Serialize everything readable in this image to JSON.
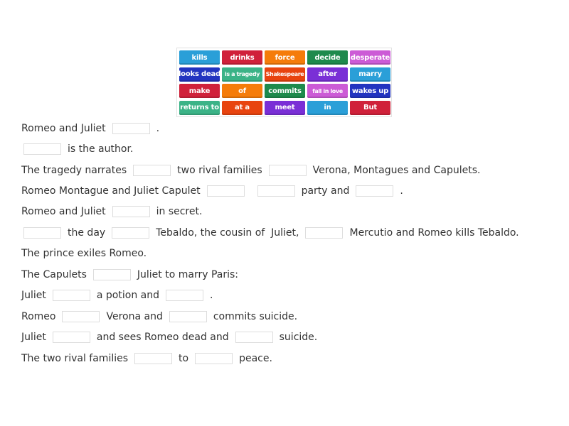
{
  "word_bank": [
    {
      "label": "kills",
      "color": "#2a9fd8"
    },
    {
      "label": "drinks",
      "color": "#d0213a"
    },
    {
      "label": "force",
      "color": "#f57c0a"
    },
    {
      "label": "decide",
      "color": "#1e8a4c"
    },
    {
      "label": "desperate",
      "color": "#cc5bd6"
    },
    {
      "label": "looks dead",
      "color": "#2234c0"
    },
    {
      "label": "is a tragedy",
      "color": "#3bb387"
    },
    {
      "label": "Shakespeare",
      "color": "#e8440f"
    },
    {
      "label": "after",
      "color": "#7a2fd6"
    },
    {
      "label": "marry",
      "color": "#2a9fd8"
    },
    {
      "label": "make",
      "color": "#d0213a"
    },
    {
      "label": "of",
      "color": "#f57c0a"
    },
    {
      "label": "commits",
      "color": "#1e8a4c"
    },
    {
      "label": "fall in love",
      "color": "#cc5bd6"
    },
    {
      "label": "wakes up",
      "color": "#2234c0"
    },
    {
      "label": "returns to",
      "color": "#3bb387"
    },
    {
      "label": "at a",
      "color": "#e8440f"
    },
    {
      "label": "meet",
      "color": "#7a2fd6"
    },
    {
      "label": "in",
      "color": "#2a9fd8"
    },
    {
      "label": "But",
      "color": "#d0213a"
    }
  ],
  "sentences": [
    [
      {
        "t": "Romeo and Juliet"
      },
      {
        "blank": true
      },
      {
        "t": "."
      }
    ],
    [
      {
        "blank": true
      },
      {
        "t": "is the author."
      }
    ],
    [
      {
        "t": "The tragedy narrates"
      },
      {
        "blank": true
      },
      {
        "t": "two rival families"
      },
      {
        "blank": true
      },
      {
        "t": "Verona, Montagues and Capulets."
      }
    ],
    [
      {
        "t": "Romeo Montague and Juliet Capulet"
      },
      {
        "blank": true
      },
      {
        "blank": true
      },
      {
        "t": "party and"
      },
      {
        "blank": true
      },
      {
        "t": "."
      }
    ],
    [
      {
        "t": "Romeo and Juliet"
      },
      {
        "blank": true
      },
      {
        "t": "in secret."
      }
    ],
    [
      {
        "blank": true
      },
      {
        "t": "the day"
      },
      {
        "blank": true
      },
      {
        "t": "Tebaldo, the cousin of  Juliet,"
      },
      {
        "blank": true
      },
      {
        "t": "Mercutio and Romeo kills Tebaldo."
      }
    ],
    [
      {
        "t": "The prince exiles Romeo."
      }
    ],
    [
      {
        "t": "The Capulets"
      },
      {
        "blank": true
      },
      {
        "t": "Juliet to marry Paris:"
      }
    ],
    [
      {
        "t": "Juliet"
      },
      {
        "blank": true
      },
      {
        "t": "a potion and"
      },
      {
        "blank": true
      },
      {
        "t": "."
      }
    ],
    [
      {
        "t": "Romeo"
      },
      {
        "blank": true
      },
      {
        "t": "Verona and"
      },
      {
        "blank": true
      },
      {
        "t": "commits suicide."
      }
    ],
    [
      {
        "t": "Juliet"
      },
      {
        "blank": true
      },
      {
        "t": "and sees Romeo dead and"
      },
      {
        "blank": true
      },
      {
        "t": "suicide."
      }
    ],
    [
      {
        "t": "The two rival families"
      },
      {
        "blank": true
      },
      {
        "t": "to"
      },
      {
        "blank": true
      },
      {
        "t": "peace."
      }
    ]
  ]
}
